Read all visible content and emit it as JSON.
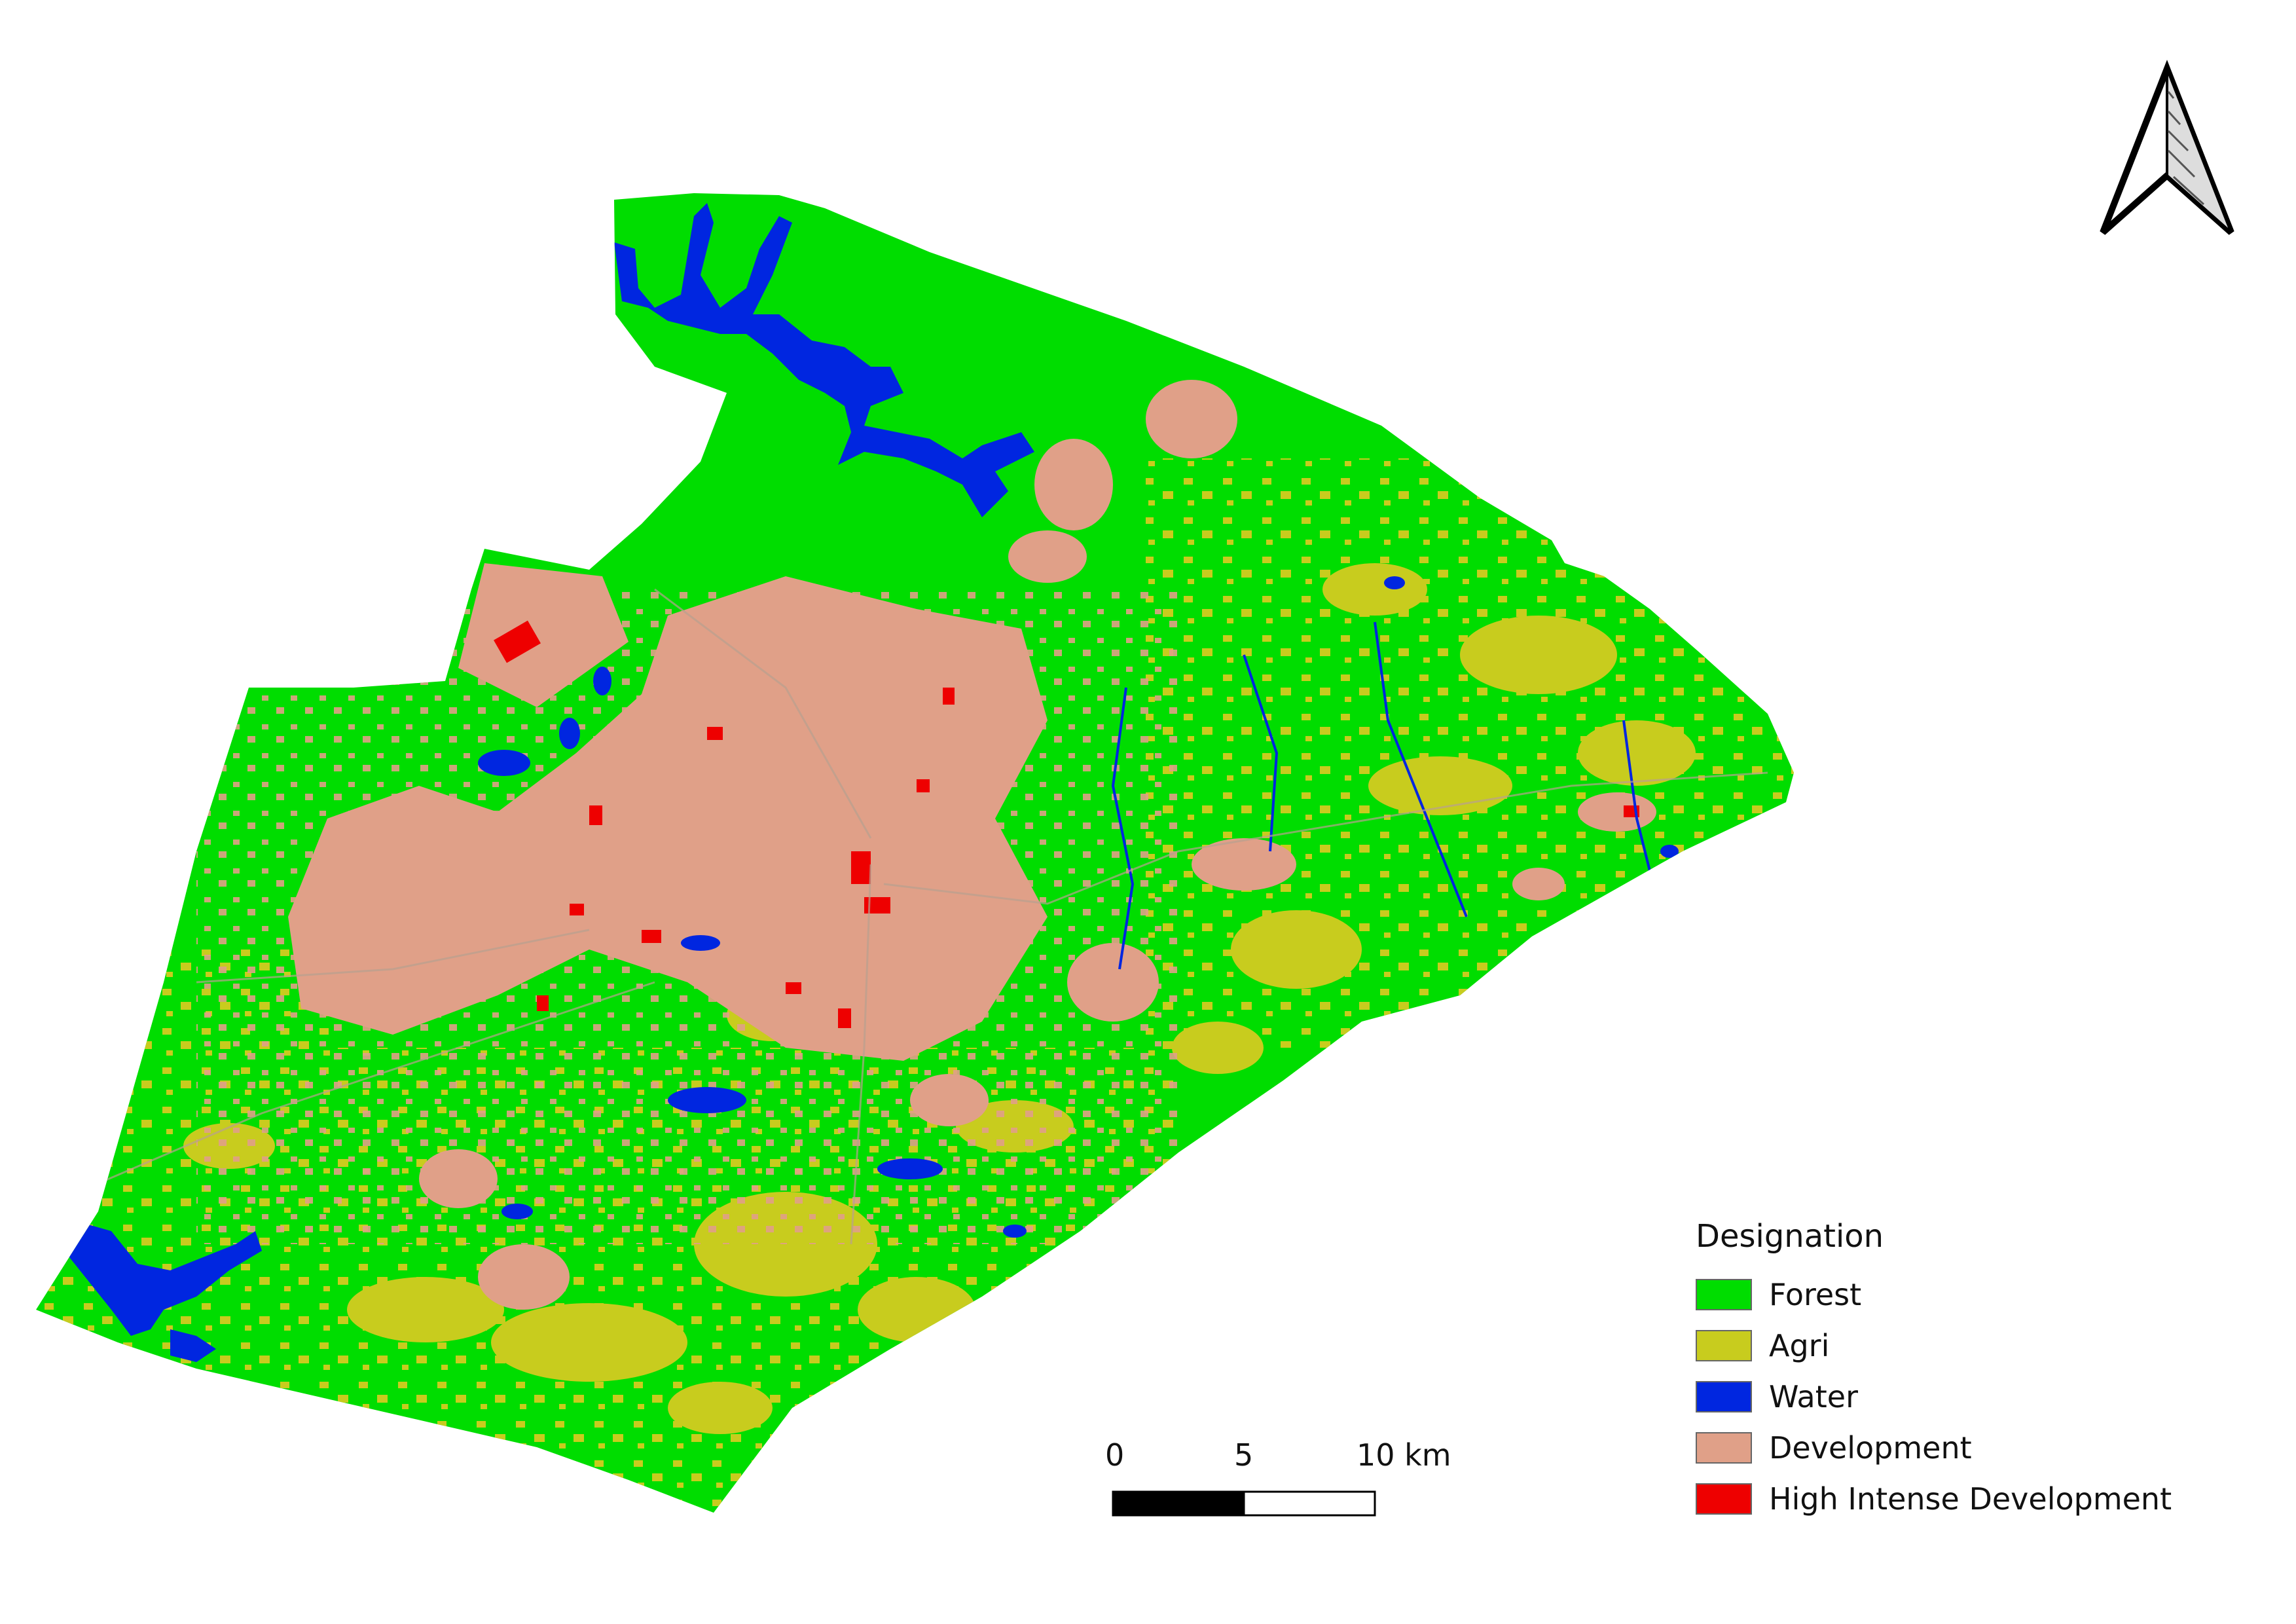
{
  "legend": {
    "title": "Designation",
    "items": [
      {
        "label": "Forest",
        "color": "#00dd00"
      },
      {
        "label": "Agri",
        "color": "#c8cc1e"
      },
      {
        "label": "Water",
        "color": "#0026e0"
      },
      {
        "label": "Development",
        "color": "#e0a088"
      },
      {
        "label": "High Intense Development",
        "color": "#ee0000"
      }
    ]
  },
  "scale_bar": {
    "labels": [
      "0",
      "5",
      "10 km"
    ]
  },
  "north_arrow": {
    "icon": "north-arrow-icon"
  }
}
